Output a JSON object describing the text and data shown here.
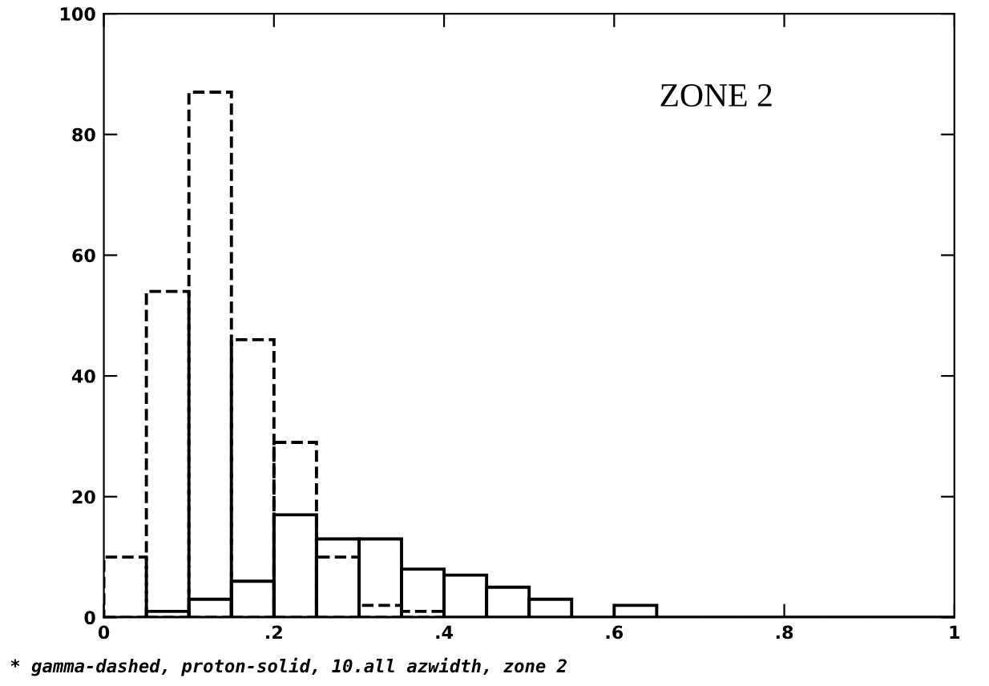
{
  "chart_data": {
    "type": "histogram",
    "bins": [
      0,
      0.05,
      0.1,
      0.15,
      0.2,
      0.25,
      0.3,
      0.35,
      0.4,
      0.45,
      0.5,
      0.55,
      0.6,
      0.65,
      0.7,
      0.75,
      0.8,
      0.85,
      0.9,
      0.95,
      1
    ],
    "series": [
      {
        "color": "#000000",
        "line_style": "dashed",
        "values": [
          10,
          54,
          87,
          46,
          29,
          10,
          2,
          1,
          0,
          0,
          0,
          0,
          0,
          0,
          0,
          0,
          0,
          0,
          0,
          0
        ]
      },
      {
        "color": "#000000",
        "line_style": "solid",
        "values": [
          0,
          1,
          3,
          6,
          17,
          13,
          13,
          8,
          7,
          5,
          3,
          0,
          2,
          0,
          0,
          0,
          0,
          0,
          0,
          0
        ]
      }
    ],
    "xlim": [
      0,
      1
    ],
    "ylim": [
      0,
      100
    ],
    "xticks": [
      0,
      {
        "value": 0.2,
        "label": ".2"
      },
      {
        "value": 0.4,
        "label": ".4"
      },
      {
        "value": 0.6,
        "label": ".6"
      },
      {
        "value": 0.8,
        "label": ".8"
      },
      1
    ],
    "yticks": [
      0,
      20,
      40,
      60,
      80,
      100
    ],
    "grid": false,
    "annotations": [
      "ZONE 2",
      "* gamma-dashed, proton-solid, 10.all azwidth, zone 2"
    ]
  }
}
